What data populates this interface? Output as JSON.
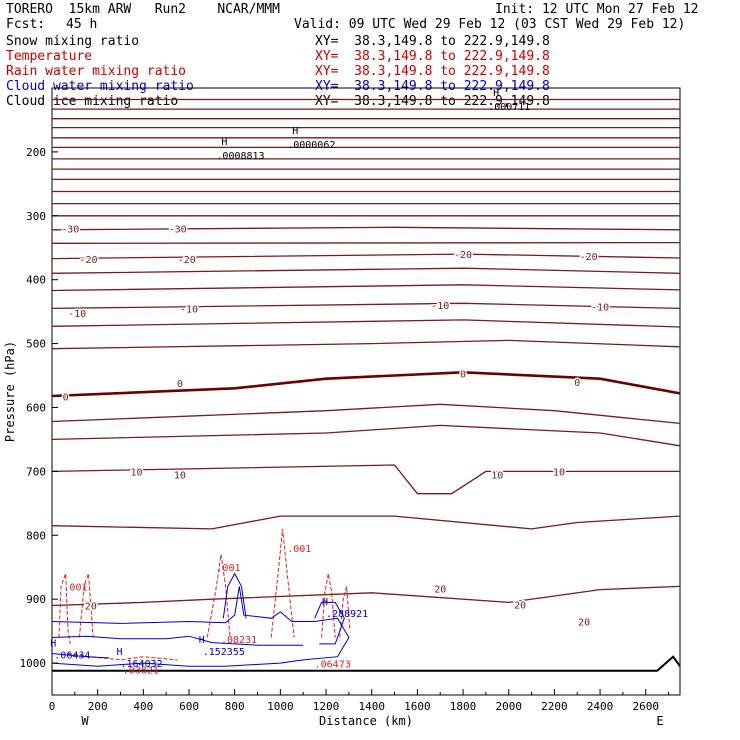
{
  "header": {
    "model": "TORERO  15km ARW   Run2    NCAR/MMM",
    "init": "Init: 12 UTC Mon 27 Feb 12",
    "fcst_label": "Fcst:",
    "fcst_value": "45 h",
    "valid": "Valid: 09 UTC Wed 29 Feb 12 (03 CST Wed 29 Feb 12)"
  },
  "fields": [
    {
      "name": "Snow mixing ratio",
      "xy": "XY=  38.3,149.8 to 222.9,149.8",
      "color": "#000000",
      "xy_color": "#000000"
    },
    {
      "name": "Temperature",
      "xy": "XY=  38.3,149.8 to 222.9,149.8",
      "color": "#cc0000",
      "xy_color": "#cc0000"
    },
    {
      "name": "Rain water mixing ratio",
      "xy": "XY=  38.3,149.8 to 222.9,149.8",
      "color": "#cc0000",
      "xy_color": "#cc0000"
    },
    {
      "name": "Cloud water mixing ratio",
      "xy": "XY=  38.3,149.8 to 222.9,149.8",
      "color": "#0000cc",
      "xy_color": "#0000cc"
    },
    {
      "name": "Cloud ice mixing ratio",
      "xy": "XY=  38.3,149.8 to 222.9,149.8",
      "color": "#000000",
      "xy_color": "#000000"
    }
  ],
  "chart_data": {
    "type": "line",
    "title": "",
    "xlabel": "Distance (km)",
    "ylabel": "Pressure (hPa)",
    "xlim": [
      0,
      2750
    ],
    "ylim": [
      1050,
      100
    ],
    "x_ticks": [
      0,
      200,
      400,
      600,
      800,
      1000,
      1200,
      1400,
      1600,
      1800,
      2000,
      2200,
      2400,
      2600
    ],
    "y_ticks": [
      200,
      300,
      400,
      500,
      600,
      700,
      800,
      900,
      1000
    ],
    "end_labels": {
      "left": "W",
      "right": "E"
    },
    "colors": {
      "temperature": "#7a1a1a",
      "zero_isotherm": "#6b0000",
      "rain": "#e02020",
      "cloud_water": "#0000cc",
      "terrain": "#000000"
    },
    "temperature_isotherms": [
      {
        "points": [
          [
            0,
            118
          ],
          [
            2750,
            118
          ]
        ]
      },
      {
        "points": [
          [
            0,
            133
          ],
          [
            2750,
            133
          ]
        ]
      },
      {
        "points": [
          [
            0,
            148
          ],
          [
            2750,
            148
          ]
        ]
      },
      {
        "points": [
          [
            0,
            162
          ],
          [
            2750,
            162
          ]
        ]
      },
      {
        "points": [
          [
            0,
            178
          ],
          [
            2750,
            178
          ]
        ]
      },
      {
        "points": [
          [
            0,
            193
          ],
          [
            2750,
            193
          ]
        ]
      },
      {
        "points": [
          [
            0,
            211
          ],
          [
            2750,
            211
          ]
        ]
      },
      {
        "points": [
          [
            0,
            227
          ],
          [
            2750,
            227
          ]
        ]
      },
      {
        "points": [
          [
            0,
            243
          ],
          [
            2750,
            243
          ]
        ]
      },
      {
        "points": [
          [
            0,
            262
          ],
          [
            2750,
            262
          ]
        ]
      },
      {
        "points": [
          [
            0,
            281
          ],
          [
            2750,
            281
          ]
        ]
      },
      {
        "points": [
          [
            0,
            300
          ],
          [
            2750,
            300
          ]
        ]
      },
      {
        "points": [
          [
            0,
            322
          ],
          [
            1500,
            318
          ],
          [
            2750,
            322
          ]
        ],
        "label": "-30"
      },
      {
        "points": [
          [
            0,
            343
          ],
          [
            2750,
            342
          ]
        ]
      },
      {
        "points": [
          [
            0,
            367
          ],
          [
            1800,
            360
          ],
          [
            2750,
            366
          ]
        ],
        "label": "-20"
      },
      {
        "points": [
          [
            0,
            390
          ],
          [
            1800,
            382
          ],
          [
            2750,
            390
          ]
        ]
      },
      {
        "points": [
          [
            0,
            417
          ],
          [
            1800,
            408
          ],
          [
            2750,
            416
          ]
        ]
      },
      {
        "points": [
          [
            0,
            445
          ],
          [
            1800,
            437
          ],
          [
            2750,
            445
          ]
        ],
        "label": "-10"
      },
      {
        "points": [
          [
            0,
            473
          ],
          [
            1800,
            463
          ],
          [
            2750,
            474
          ]
        ]
      },
      {
        "points": [
          [
            0,
            508
          ],
          [
            1400,
            500
          ],
          [
            2000,
            495
          ],
          [
            2750,
            505
          ]
        ]
      },
      {
        "points": [
          [
            0,
            582
          ],
          [
            800,
            570
          ],
          [
            1200,
            555
          ],
          [
            1800,
            545
          ],
          [
            2400,
            555
          ],
          [
            2750,
            578
          ]
        ],
        "label": "0",
        "zero": true
      },
      {
        "points": [
          [
            0,
            622
          ],
          [
            1200,
            605
          ],
          [
            1700,
            595
          ],
          [
            2200,
            605
          ],
          [
            2750,
            625
          ]
        ]
      },
      {
        "points": [
          [
            0,
            650
          ],
          [
            1200,
            640
          ],
          [
            1700,
            628
          ],
          [
            2400,
            640
          ],
          [
            2750,
            660
          ]
        ]
      },
      {
        "points": [
          [
            0,
            700
          ],
          [
            1500,
            690
          ],
          [
            1600,
            735
          ],
          [
            1750,
            735
          ],
          [
            1900,
            700
          ],
          [
            2750,
            700
          ]
        ],
        "label": "10"
      },
      {
        "points": [
          [
            0,
            785
          ],
          [
            700,
            790
          ],
          [
            1000,
            770
          ],
          [
            1500,
            770
          ],
          [
            2100,
            790
          ],
          [
            2300,
            780
          ],
          [
            2750,
            770
          ]
        ]
      },
      {
        "points": [
          [
            0,
            910
          ],
          [
            400,
            905
          ],
          [
            700,
            900
          ],
          [
            1400,
            890
          ],
          [
            2000,
            905
          ],
          [
            2400,
            885
          ],
          [
            2750,
            880
          ]
        ],
        "label": "20"
      }
    ],
    "labels": {
      "temperature": [
        {
          "x": 80,
          "p": 320,
          "text": "-30"
        },
        {
          "x": 550,
          "p": 320,
          "text": "-30"
        },
        {
          "x": 160,
          "p": 368,
          "text": "-20"
        },
        {
          "x": 590,
          "p": 368,
          "text": "-20"
        },
        {
          "x": 1800,
          "p": 360,
          "text": "-20"
        },
        {
          "x": 2350,
          "p": 363,
          "text": "-20"
        },
        {
          "x": 110,
          "p": 452,
          "text": "-10"
        },
        {
          "x": 600,
          "p": 445,
          "text": "-10"
        },
        {
          "x": 1700,
          "p": 440,
          "text": "-10"
        },
        {
          "x": 2400,
          "p": 442,
          "text": "-10"
        },
        {
          "x": 60,
          "p": 583,
          "text": "0"
        },
        {
          "x": 560,
          "p": 562,
          "text": "0"
        },
        {
          "x": 1800,
          "p": 547,
          "text": "0"
        },
        {
          "x": 2300,
          "p": 560,
          "text": "0"
        },
        {
          "x": 370,
          "p": 700,
          "text": "10"
        },
        {
          "x": 560,
          "p": 705,
          "text": "10"
        },
        {
          "x": 1950,
          "p": 705,
          "text": "10"
        },
        {
          "x": 2220,
          "p": 700,
          "text": "10"
        },
        {
          "x": 170,
          "p": 910,
          "text": "20"
        },
        {
          "x": 1700,
          "p": 883,
          "text": "20"
        },
        {
          "x": 2050,
          "p": 908,
          "text": "20"
        },
        {
          "x": 2330,
          "p": 935,
          "text": "20"
        }
      ],
      "snow_maxima": [
        {
          "x": 720,
          "p": 205,
          "text": ".0008813"
        },
        {
          "x": 1030,
          "p": 188,
          "text": ".0000062"
        },
        {
          "x": 1910,
          "p": 128,
          "text": ".000711"
        }
      ],
      "rain": [
        {
          "x": 50,
          "p": 880,
          "text": ".001"
        },
        {
          "x": 720,
          "p": 850,
          "text": ".001"
        },
        {
          "x": 1030,
          "p": 820,
          "text": ".001"
        },
        {
          "x": 740,
          "p": 962,
          "text": ".08231"
        },
        {
          "x": 310,
          "p": 1010,
          "text": ".03821"
        },
        {
          "x": 1150,
          "p": 1001,
          "text": ".06473"
        }
      ],
      "cloud_water": [
        {
          "x": 1200,
          "p": 922,
          "text": ".288921"
        },
        {
          "x": 660,
          "p": 981,
          "text": ".152355"
        },
        {
          "x": 300,
          "p": 1000,
          "text": ".164032"
        },
        {
          "x": 10,
          "p": 987,
          "text": ".06434"
        }
      ],
      "maxima_marker": "H"
    },
    "rain_contours": [
      {
        "points": [
          [
            30,
            960
          ],
          [
            40,
            880
          ],
          [
            60,
            860
          ],
          [
            70,
            950
          ],
          [
            80,
            970
          ]
        ]
      },
      {
        "points": [
          [
            120,
            960
          ],
          [
            140,
            880
          ],
          [
            160,
            860
          ],
          [
            180,
            960
          ]
        ]
      },
      {
        "points": [
          [
            680,
            960
          ],
          [
            720,
            880
          ],
          [
            740,
            830
          ],
          [
            760,
            880
          ],
          [
            780,
            960
          ]
        ]
      },
      {
        "points": [
          [
            960,
            960
          ],
          [
            990,
            860
          ],
          [
            1010,
            790
          ],
          [
            1030,
            860
          ],
          [
            1060,
            960
          ]
        ]
      },
      {
        "points": [
          [
            1180,
            960
          ],
          [
            1195,
            890
          ],
          [
            1210,
            860
          ],
          [
            1225,
            890
          ],
          [
            1240,
            960
          ]
        ]
      },
      {
        "points": [
          [
            1260,
            960
          ],
          [
            1275,
            900
          ],
          [
            1290,
            880
          ],
          [
            1305,
            950
          ]
        ]
      },
      {
        "points": [
          [
            70,
            985
          ],
          [
            170,
            990
          ],
          [
            300,
            995
          ],
          [
            400,
            990
          ],
          [
            550,
            995
          ]
        ]
      }
    ],
    "cloud_contours": [
      {
        "points": [
          [
            0,
            935
          ],
          [
            300,
            938
          ],
          [
            600,
            935
          ],
          [
            760,
            937
          ],
          [
            800,
            925
          ],
          [
            820,
            880
          ],
          [
            840,
            925
          ],
          [
            960,
            930
          ],
          [
            1000,
            920
          ],
          [
            1050,
            935
          ],
          [
            1150,
            935
          ],
          [
            1250,
            930
          ],
          [
            1300,
            960
          ],
          [
            1250,
            990
          ],
          [
            1100,
            995
          ],
          [
            1000,
            1000
          ],
          [
            760,
            1005
          ],
          [
            600,
            1005
          ],
          [
            400,
            1000
          ],
          [
            200,
            1005
          ],
          [
            0,
            1000
          ]
        ]
      },
      {
        "points": [
          [
            750,
            930
          ],
          [
            770,
            880
          ],
          [
            800,
            860
          ],
          [
            830,
            880
          ],
          [
            850,
            930
          ]
        ]
      },
      {
        "points": [
          [
            1150,
            930
          ],
          [
            1180,
            905
          ],
          [
            1240,
            905
          ],
          [
            1280,
            930
          ],
          [
            1240,
            970
          ],
          [
            1170,
            970
          ]
        ]
      },
      {
        "points": [
          [
            0,
            960
          ],
          [
            150,
            958
          ],
          [
            300,
            962
          ],
          [
            500,
            962
          ],
          [
            600,
            958
          ],
          [
            700,
            968
          ],
          [
            900,
            972
          ],
          [
            1100,
            972
          ]
        ]
      },
      {
        "points": [
          [
            0,
            985
          ],
          [
            150,
            990
          ],
          [
            250,
            992
          ]
        ]
      }
    ],
    "terrain": [
      [
        0,
        1012
      ],
      [
        2650,
        1012
      ],
      [
        2720,
        990
      ],
      [
        2750,
        1005
      ]
    ]
  }
}
